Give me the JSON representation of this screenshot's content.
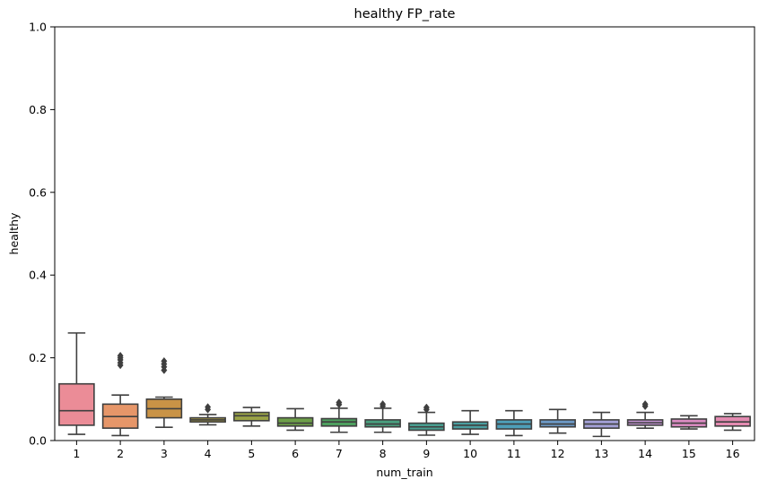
{
  "chart_data": {
    "type": "box",
    "title": "healthy FP_rate",
    "xlabel": "num_train",
    "ylabel": "healthy",
    "ylim": [
      0,
      1
    ],
    "yticks": [
      "0.0",
      "0.2",
      "0.4",
      "0.6",
      "0.8",
      "1.0"
    ],
    "categories": [
      "1",
      "2",
      "3",
      "4",
      "5",
      "6",
      "7",
      "8",
      "9",
      "10",
      "11",
      "12",
      "13",
      "14",
      "15",
      "16"
    ],
    "colors": [
      "#eb8c97",
      "#e69669",
      "#c99346",
      "#a89b46",
      "#9aa346",
      "#6d9f48",
      "#4d9f5e",
      "#4a9e7e",
      "#489d8f",
      "#4a9ea0",
      "#4e9fb8",
      "#6c99c5",
      "#a3a0d6",
      "#c192d1",
      "#d98bc1",
      "#e28ab0"
    ],
    "boxes": [
      {
        "whisker_low": 0.015,
        "q1": 0.037,
        "median": 0.072,
        "q3": 0.137,
        "whisker_high": 0.26,
        "fliers": []
      },
      {
        "whisker_low": 0.012,
        "q1": 0.03,
        "median": 0.058,
        "q3": 0.088,
        "whisker_high": 0.11,
        "fliers": [
          0.182,
          0.188,
          0.195,
          0.2,
          0.205
        ]
      },
      {
        "whisker_low": 0.032,
        "q1": 0.055,
        "median": 0.077,
        "q3": 0.1,
        "whisker_high": 0.105,
        "fliers": [
          0.17,
          0.178,
          0.185,
          0.192
        ]
      },
      {
        "whisker_low": 0.038,
        "q1": 0.045,
        "median": 0.05,
        "q3": 0.055,
        "whisker_high": 0.063,
        "fliers": [
          0.075,
          0.081
        ]
      },
      {
        "whisker_low": 0.035,
        "q1": 0.048,
        "median": 0.06,
        "q3": 0.068,
        "whisker_high": 0.08,
        "fliers": []
      },
      {
        "whisker_low": 0.025,
        "q1": 0.035,
        "median": 0.042,
        "q3": 0.055,
        "whisker_high": 0.077,
        "fliers": []
      },
      {
        "whisker_low": 0.02,
        "q1": 0.035,
        "median": 0.045,
        "q3": 0.053,
        "whisker_high": 0.078,
        "fliers": [
          0.087,
          0.092
        ]
      },
      {
        "whisker_low": 0.02,
        "q1": 0.033,
        "median": 0.04,
        "q3": 0.05,
        "whisker_high": 0.078,
        "fliers": [
          0.083,
          0.088
        ]
      },
      {
        "whisker_low": 0.013,
        "q1": 0.025,
        "median": 0.033,
        "q3": 0.042,
        "whisker_high": 0.068,
        "fliers": [
          0.075,
          0.08
        ]
      },
      {
        "whisker_low": 0.015,
        "q1": 0.028,
        "median": 0.037,
        "q3": 0.045,
        "whisker_high": 0.072,
        "fliers": []
      },
      {
        "whisker_low": 0.012,
        "q1": 0.028,
        "median": 0.04,
        "q3": 0.05,
        "whisker_high": 0.072,
        "fliers": []
      },
      {
        "whisker_low": 0.018,
        "q1": 0.033,
        "median": 0.04,
        "q3": 0.05,
        "whisker_high": 0.075,
        "fliers": []
      },
      {
        "whisker_low": 0.01,
        "q1": 0.03,
        "median": 0.04,
        "q3": 0.05,
        "whisker_high": 0.068,
        "fliers": []
      },
      {
        "whisker_low": 0.03,
        "q1": 0.037,
        "median": 0.043,
        "q3": 0.05,
        "whisker_high": 0.068,
        "fliers": [
          0.083,
          0.088
        ]
      },
      {
        "whisker_low": 0.028,
        "q1": 0.033,
        "median": 0.042,
        "q3": 0.052,
        "whisker_high": 0.06,
        "fliers": []
      },
      {
        "whisker_low": 0.025,
        "q1": 0.035,
        "median": 0.045,
        "q3": 0.058,
        "whisker_high": 0.065,
        "fliers": []
      }
    ]
  }
}
